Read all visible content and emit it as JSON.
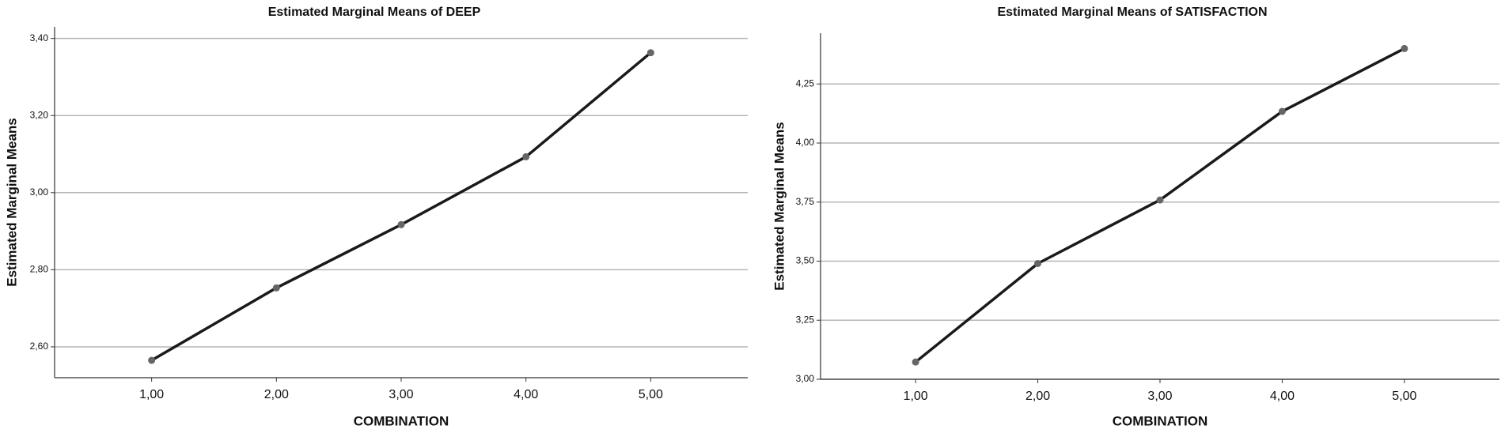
{
  "chart_data": [
    {
      "type": "line",
      "title": "Estimated Marginal Means of DEEP",
      "x_label": "COMBINATION",
      "y_label": "Estimated Marginal Means",
      "categories": [
        "1,00",
        "2,00",
        "3,00",
        "4,00",
        "5,00"
      ],
      "values": [
        2.565,
        2.753,
        2.917,
        3.093,
        3.363
      ],
      "color": "#1a1a1a",
      "marker_color": "#666666",
      "ylim": [
        2.52,
        3.43
      ],
      "yticks": [
        {
          "value": 2.6,
          "label": "2,60"
        },
        {
          "value": 2.8,
          "label": "2,80"
        },
        {
          "value": 3.0,
          "label": "3,00"
        },
        {
          "value": 3.2,
          "label": "3,20"
        },
        {
          "value": 3.4,
          "label": "3,40"
        }
      ],
      "grid": true
    },
    {
      "type": "line",
      "title": "Estimated Marginal Means of SATISFACTION",
      "x_label": "COMBINATION",
      "y_label": "Estimated Marginal Means",
      "categories": [
        "1,00",
        "2,00",
        "3,00",
        "4,00",
        "5,00"
      ],
      "values": [
        3.073,
        3.49,
        3.759,
        4.134,
        4.4
      ],
      "color": "#1a1a1a",
      "marker_color": "#666666",
      "ylim": [
        3.0,
        4.465
      ],
      "yticks": [
        {
          "value": 3.0,
          "label": "3,00"
        },
        {
          "value": 3.25,
          "label": "3,25"
        },
        {
          "value": 3.5,
          "label": "3,50"
        },
        {
          "value": 3.75,
          "label": "3,75"
        },
        {
          "value": 4.0,
          "label": "4,00"
        },
        {
          "value": 4.25,
          "label": "4,25"
        }
      ],
      "grid": true
    }
  ]
}
